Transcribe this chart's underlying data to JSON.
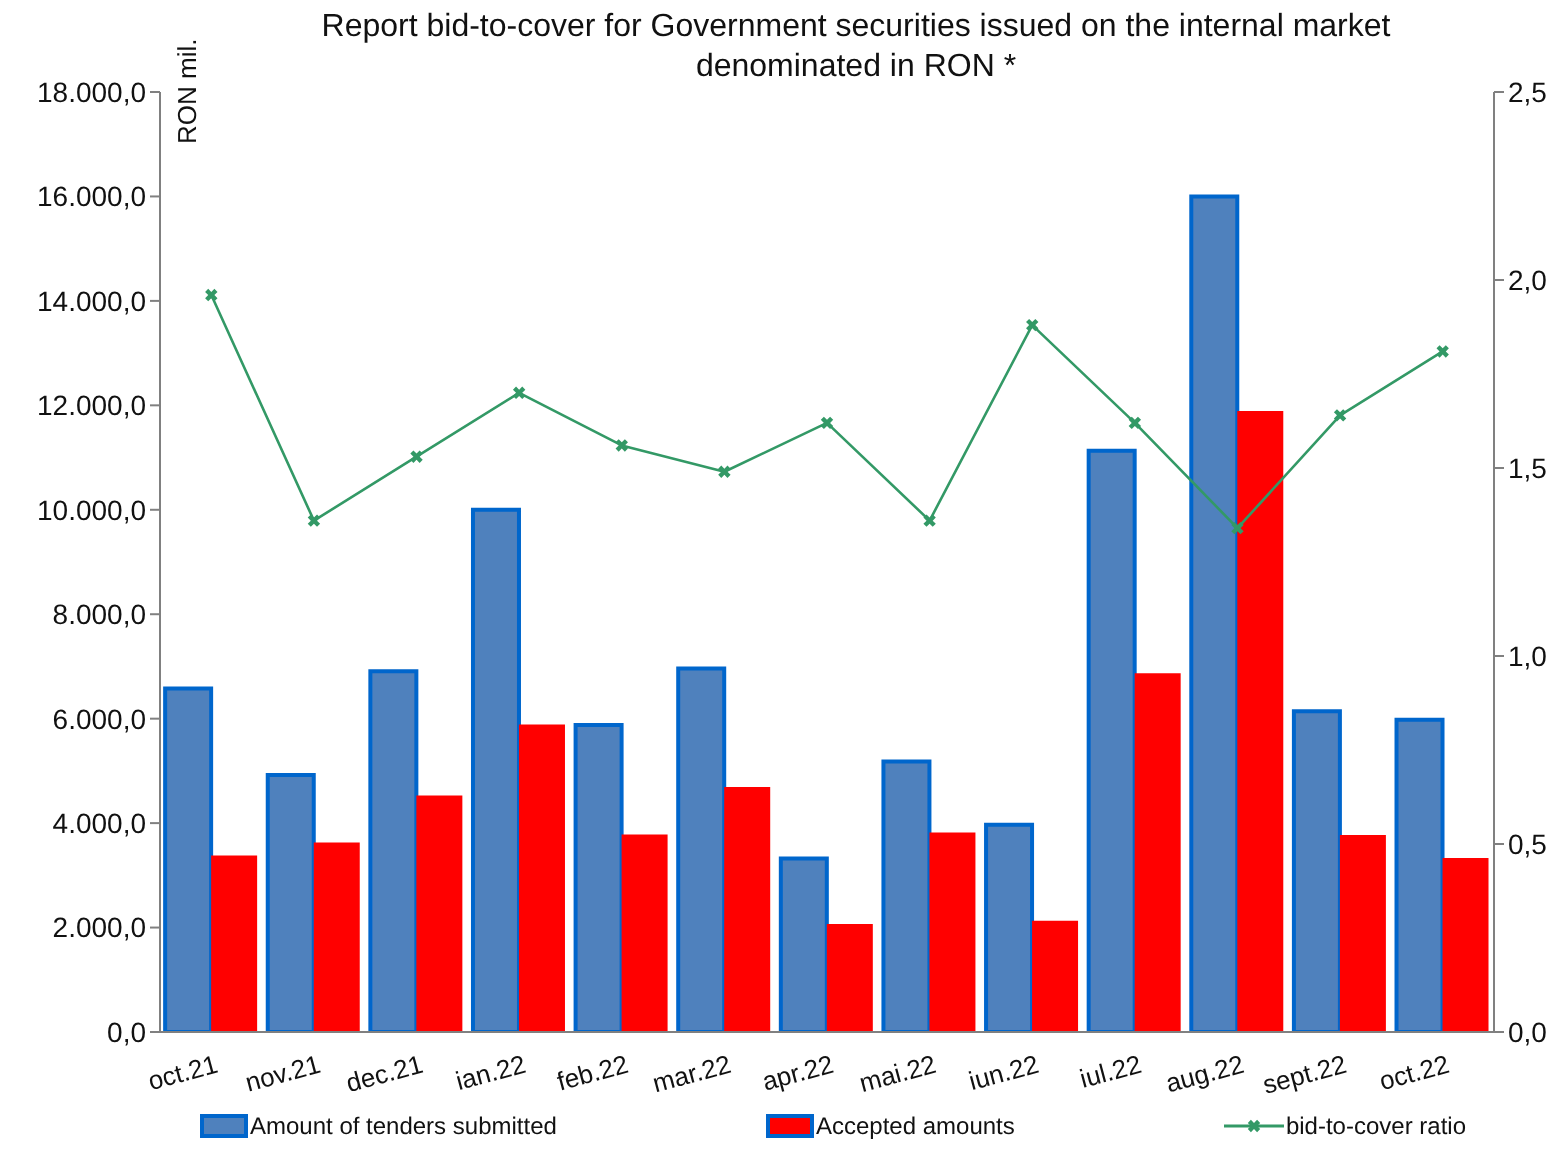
{
  "chart_data": {
    "type": "bar",
    "title": "Report bid-to-cover for Government securities issued on the internal market denominated in RON *",
    "ylabel": "RON mil.",
    "categories": [
      "oct.21",
      "nov.21",
      "dec.21",
      "ian.22",
      "feb.22",
      "mar.22",
      "apr.22",
      "mai.22",
      "iun.22",
      "iul.22",
      "aug.22",
      "sept.22",
      "oct.22"
    ],
    "series": [
      {
        "name": "Amount of tenders submitted",
        "color": "#4f81bd",
        "values": [
          6580,
          4920,
          6910,
          10000,
          5880,
          6960,
          3320,
          5180,
          3970,
          11130,
          16000,
          6140,
          5980
        ]
      },
      {
        "name": "Accepted amounts",
        "color": "#ff0000",
        "values": [
          3380,
          3630,
          4530,
          5890,
          3780,
          4690,
          2070,
          3820,
          2130,
          6870,
          11890,
          3770,
          3330
        ]
      },
      {
        "name": "bid-to-cover ratio",
        "type": "line",
        "axis": "y2",
        "color": "#339966",
        "values": [
          1.96,
          1.36,
          1.53,
          1.7,
          1.56,
          1.49,
          1.62,
          1.36,
          1.88,
          1.62,
          1.34,
          1.64,
          1.81
        ]
      }
    ],
    "ylim": [
      0,
      18000
    ],
    "yticks": [
      {
        "value": 0,
        "label": "0,0"
      },
      {
        "value": 2000,
        "label": "2.000,0"
      },
      {
        "value": 4000,
        "label": "4.000,0"
      },
      {
        "value": 6000,
        "label": "6.000,0"
      },
      {
        "value": 8000,
        "label": "8.000,0"
      },
      {
        "value": 10000,
        "label": "10.000,0"
      },
      {
        "value": 12000,
        "label": "12.000,0"
      },
      {
        "value": 14000,
        "label": "14.000,0"
      },
      {
        "value": 16000,
        "label": "16.000,0"
      },
      {
        "value": 18000,
        "label": "18.000,0"
      }
    ],
    "y2lim": [
      0,
      2.5
    ],
    "y2ticks": [
      {
        "value": 0,
        "label": "0,0"
      },
      {
        "value": 0.5,
        "label": "0,5"
      },
      {
        "value": 1,
        "label": "1,0"
      },
      {
        "value": 1.5,
        "label": "1,5"
      },
      {
        "value": 2,
        "label": "2,0"
      },
      {
        "value": 2.5,
        "label": "2,5"
      }
    ],
    "marker": "cross",
    "legend": "bottom"
  }
}
